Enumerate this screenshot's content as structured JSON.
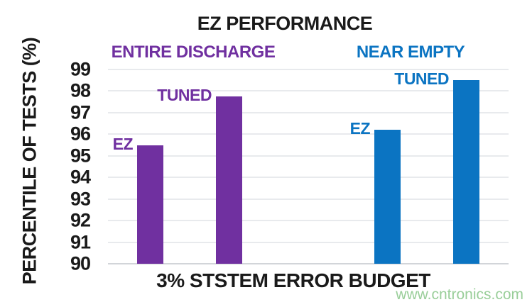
{
  "chart": {
    "watermark": "www.cntronics.com"
  },
  "chart_data": {
    "type": "bar",
    "title": "EZ PERFORMANCE",
    "xlabel": "3% STSTEM ERROR BUDGET",
    "ylabel": "PERCENTILE OF TESTS (%)",
    "ylim": [
      90,
      99
    ],
    "yticks": [
      99,
      98,
      97,
      96,
      95,
      94,
      93,
      92,
      91,
      90
    ],
    "grid": true,
    "legend_position": "none",
    "groups": [
      {
        "name": "ENTIRE DISCHARGE",
        "color": "#7030A0",
        "bars": [
          {
            "label": "EZ",
            "value": 95.5
          },
          {
            "label": "TUNED",
            "value": 97.75
          }
        ]
      },
      {
        "name": "NEAR EMPTY",
        "color": "#0B74C2",
        "bars": [
          {
            "label": "EZ",
            "value": 96.2
          },
          {
            "label": "TUNED",
            "value": 98.5
          }
        ]
      }
    ],
    "colors": {
      "gridline": "#E8EAED",
      "axis_text": "#1A1A1A",
      "watermark_green": "#99CE99"
    }
  }
}
